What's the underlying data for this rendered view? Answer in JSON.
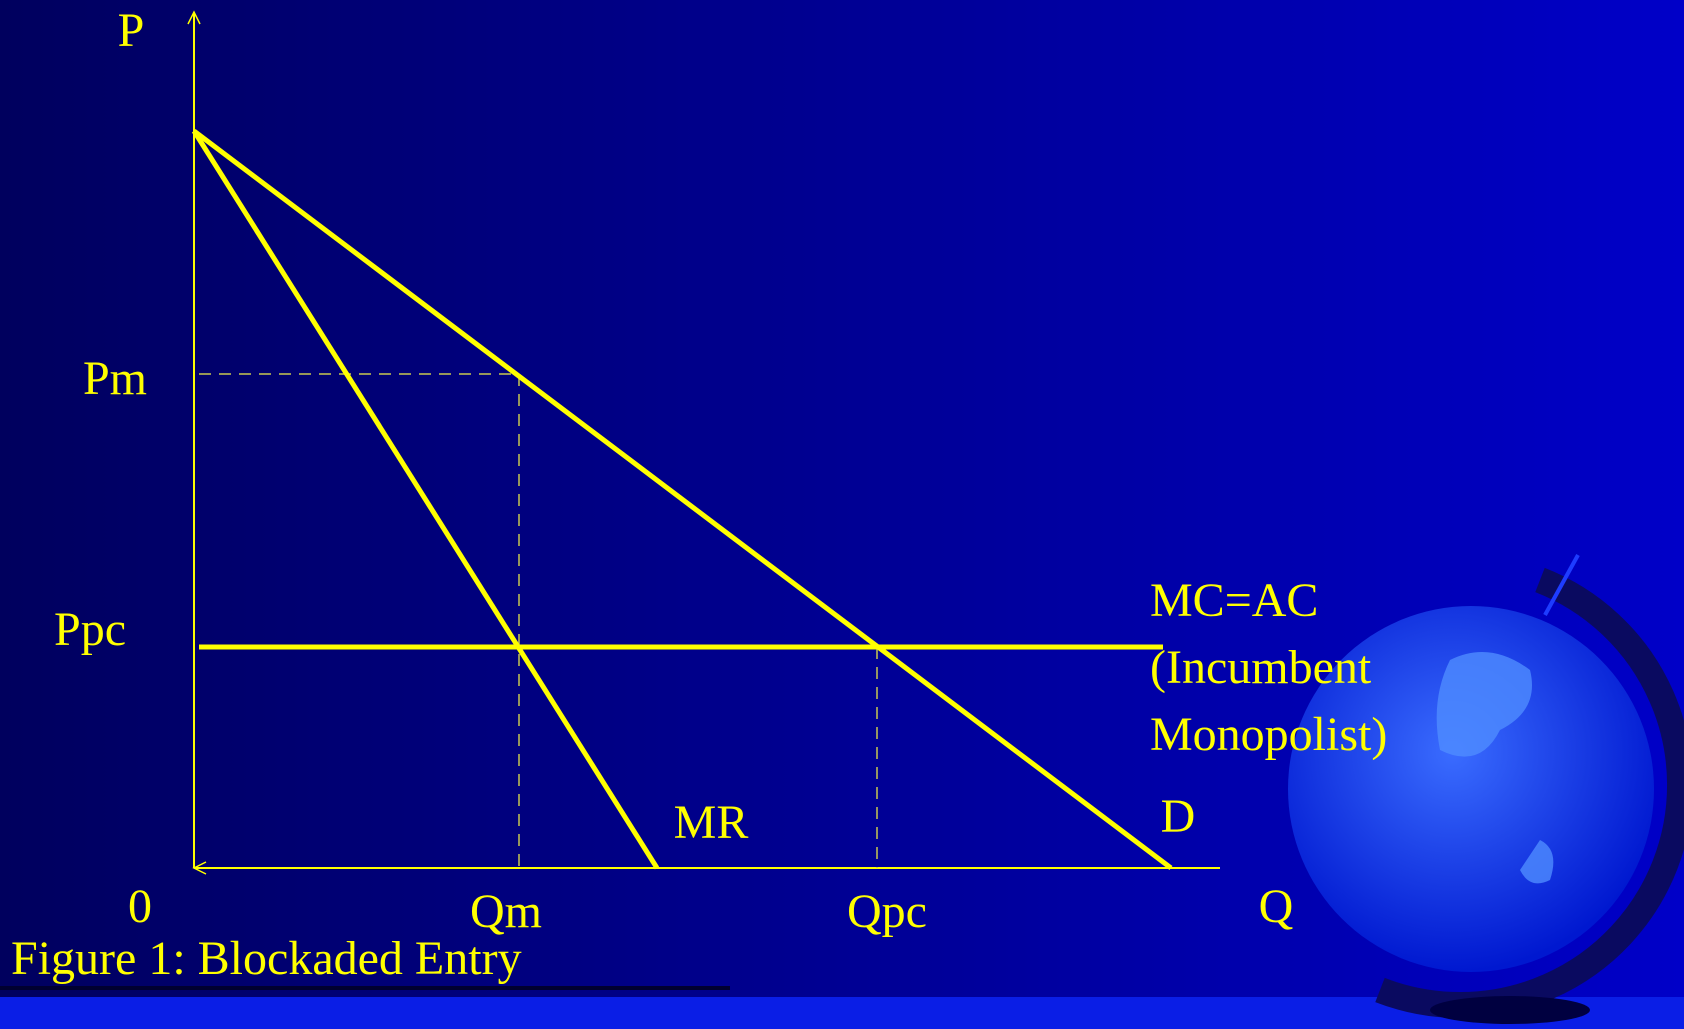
{
  "axes": {
    "y_label": "P",
    "x_label": "Q",
    "origin": "0"
  },
  "prices": {
    "monopoly": "Pm",
    "competitive": "Ppc"
  },
  "quantities": {
    "monopoly": "Qm",
    "competitive": "Qpc"
  },
  "curves": {
    "marginal_revenue": "MR",
    "demand": "D",
    "cost": [
      "MC=AC",
      "(Incumbent",
      "Monopolist)"
    ]
  },
  "caption": "Figure 1: Blockaded Entry"
}
